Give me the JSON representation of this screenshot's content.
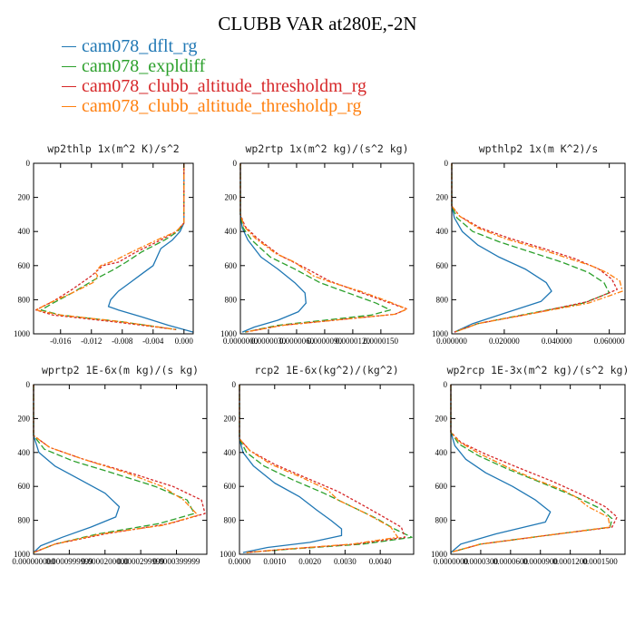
{
  "figure": {
    "title": "CLUBB VAR at280E,-2N",
    "legend": [
      {
        "label": "cam078_dflt_rg",
        "color": "#1f77b4"
      },
      {
        "label": "cam078_expldiff",
        "color": "#2ca02c"
      },
      {
        "label": "cam078_clubb_altitude_thresholdm_rg",
        "color": "#d62728"
      },
      {
        "label": "cam078_clubb_altitude_thresholdp_rg",
        "color": "#ff7f0e"
      }
    ]
  },
  "chart_data": [
    {
      "type": "line",
      "orientation": "vertical-profile",
      "title": "wp2thlp   1x(m^2 K)/s^2",
      "xlim": [
        -0.0195,
        0.0012
      ],
      "ylim": [
        0,
        1000
      ],
      "y_inverted": true,
      "x_ticks": [
        "-0.016",
        "-0.012",
        "-0.008",
        "-0.004",
        "0.000"
      ],
      "x_tick_values": [
        -0.016,
        -0.012,
        -0.008,
        -0.004,
        0.0
      ],
      "y_ticks": [
        "0",
        "200",
        "400",
        "600",
        "800",
        "1000"
      ],
      "series": [
        {
          "name": "cam078_dflt_rg",
          "x": [
            0.0,
            0.0,
            0.0,
            -0.0005,
            -0.0015,
            -0.003,
            -0.004,
            -0.0055,
            -0.007,
            -0.0085,
            -0.0095,
            -0.0098,
            -0.0085,
            -0.0055,
            -0.002,
            0.0012
          ],
          "y": [
            0,
            300,
            350,
            400,
            450,
            500,
            600,
            650,
            700,
            750,
            800,
            840,
            860,
            900,
            950,
            990
          ]
        },
        {
          "name": "cam078_expldiff",
          "x": [
            0.0,
            0.0,
            0.0,
            -0.0008,
            -0.0025,
            -0.0055,
            -0.0075,
            -0.009,
            -0.0115,
            -0.0145,
            -0.017,
            -0.0185,
            -0.016,
            -0.008,
            -0.001
          ],
          "y": [
            0,
            300,
            350,
            400,
            450,
            520,
            580,
            620,
            680,
            760,
            820,
            860,
            890,
            930,
            975
          ]
        },
        {
          "name": "cam078_clubb_altitude_thresholdm_rg",
          "x": [
            0.0,
            0.0,
            0.0,
            -0.001,
            -0.003,
            -0.0062,
            -0.0085,
            -0.0105,
            -0.012,
            -0.0145,
            -0.017,
            -0.0192,
            -0.017,
            -0.009,
            -0.001
          ],
          "y": [
            0,
            300,
            350,
            400,
            450,
            520,
            580,
            600,
            660,
            740,
            810,
            860,
            890,
            930,
            975
          ]
        },
        {
          "name": "cam078_clubb_altitude_thresholdp_rg",
          "x": [
            0.0,
            0.0,
            0.0,
            -0.001,
            -0.0035,
            -0.0068,
            -0.009,
            -0.0108,
            -0.0115,
            -0.0112,
            -0.0118,
            -0.0145,
            -0.0175,
            -0.0192,
            -0.016,
            -0.008,
            -0.001
          ],
          "y": [
            0,
            300,
            350,
            400,
            450,
            520,
            570,
            600,
            640,
            660,
            700,
            760,
            820,
            860,
            890,
            930,
            975
          ]
        }
      ]
    },
    {
      "type": "line",
      "orientation": "vertical-profile",
      "title": "wp2rtp   1x(m^2 kg)/(s^2 kg)",
      "xlim": [
        0,
        1.85e-05
      ],
      "ylim": [
        0,
        1000
      ],
      "y_inverted": true,
      "x_ticks": [
        "0.0000000",
        "0.0000030",
        "0.0000060",
        "0.0000090",
        "0.0000120",
        "0.0000150"
      ],
      "x_tick_values": [
        0.0,
        3e-06,
        6e-06,
        9e-06,
        1.2e-05,
        1.5e-05
      ],
      "y_ticks": [
        "0",
        "200",
        "400",
        "600",
        "800",
        "1000"
      ],
      "series": [
        {
          "name": "cam078_dflt_rg",
          "x": [
            0.0,
            0.0,
            2e-07,
            8e-07,
            2.2e-06,
            4e-06,
            5.8e-06,
            6.9e-06,
            7e-06,
            6.2e-06,
            4e-06,
            1.5e-06,
            2e-07
          ],
          "y": [
            0,
            300,
            380,
            450,
            550,
            620,
            700,
            760,
            820,
            870,
            920,
            960,
            990
          ]
        },
        {
          "name": "cam078_expldiff",
          "x": [
            0.0,
            0.0,
            3e-07,
            1.2e-06,
            3.2e-06,
            5.8e-06,
            8.5e-06,
            1.15e-05,
            1.45e-05,
            1.6e-05,
            1.4e-05,
            9e-06,
            4e-06,
            5e-07
          ],
          "y": [
            0,
            300,
            380,
            450,
            550,
            620,
            700,
            760,
            820,
            860,
            890,
            920,
            950,
            990
          ]
        },
        {
          "name": "cam078_clubb_altitude_thresholdm_rg",
          "x": [
            0.0,
            0.0,
            5e-07,
            1.8e-06,
            4.2e-06,
            6.8e-06,
            9.5e-06,
            1.25e-05,
            1.55e-05,
            1.78e-05,
            1.65e-05,
            1e-05,
            4.5e-06,
            5e-07
          ],
          "y": [
            0,
            300,
            370,
            440,
            540,
            610,
            690,
            750,
            810,
            855,
            885,
            920,
            950,
            990
          ]
        },
        {
          "name": "cam078_clubb_altitude_thresholdp_rg",
          "x": [
            0.0,
            0.0,
            4e-07,
            1.6e-06,
            3.8e-06,
            5.8e-06,
            6.8e-06,
            7.8e-06,
            9.8e-06,
            1.28e-05,
            1.58e-05,
            1.78e-05,
            1.65e-05,
            1e-05,
            4.5e-06,
            5e-07
          ],
          "y": [
            0,
            300,
            370,
            440,
            530,
            580,
            620,
            660,
            700,
            750,
            810,
            855,
            885,
            920,
            950,
            990
          ]
        }
      ]
    },
    {
      "type": "line",
      "orientation": "vertical-profile",
      "title": "wpthlp2   1x(m K^2)/s",
      "xlim": [
        0,
        0.066
      ],
      "ylim": [
        0,
        1000
      ],
      "y_inverted": true,
      "x_ticks": [
        "0.000000",
        "0.020000",
        "0.040000",
        "0.060000"
      ],
      "x_tick_values": [
        0.0,
        0.02,
        0.04,
        0.06
      ],
      "y_ticks": [
        "0",
        "200",
        "400",
        "600",
        "800",
        "1000"
      ],
      "series": [
        {
          "name": "cam078_dflt_rg",
          "x": [
            0.0,
            0.0,
            0.001,
            0.004,
            0.01,
            0.018,
            0.028,
            0.036,
            0.038,
            0.034,
            0.02,
            0.008,
            0.001
          ],
          "y": [
            0,
            250,
            320,
            400,
            480,
            550,
            620,
            700,
            750,
            810,
            880,
            940,
            990
          ]
        },
        {
          "name": "cam078_expldiff",
          "x": [
            0.0,
            0.0,
            0.002,
            0.008,
            0.018,
            0.03,
            0.042,
            0.052,
            0.058,
            0.06,
            0.05,
            0.03,
            0.01,
            0.001
          ],
          "y": [
            0,
            250,
            320,
            400,
            460,
            520,
            580,
            640,
            700,
            760,
            820,
            880,
            940,
            990
          ]
        },
        {
          "name": "cam078_clubb_altitude_thresholdm_rg",
          "x": [
            0.0,
            0.0,
            0.003,
            0.011,
            0.022,
            0.035,
            0.047,
            0.056,
            0.061,
            0.063,
            0.052,
            0.031,
            0.01,
            0.001
          ],
          "y": [
            0,
            250,
            310,
            380,
            440,
            500,
            560,
            620,
            680,
            740,
            810,
            880,
            940,
            990
          ]
        },
        {
          "name": "cam078_clubb_altitude_thresholdp_rg",
          "x": [
            0.0,
            0.0,
            0.003,
            0.01,
            0.02,
            0.033,
            0.045,
            0.053,
            0.059,
            0.064,
            0.065,
            0.052,
            0.031,
            0.01,
            0.001
          ],
          "y": [
            0,
            250,
            310,
            380,
            440,
            500,
            560,
            600,
            640,
            690,
            750,
            820,
            880,
            940,
            990
          ]
        }
      ]
    },
    {
      "type": "line",
      "orientation": "vertical-profile",
      "title": "wprtp2   1E-6x(m kg)/(s kg)",
      "xlim": [
        0,
        4.85e-05
      ],
      "ylim": [
        0,
        1000
      ],
      "y_inverted": true,
      "x_ticks": [
        "0.0000000",
        "0.0000100",
        "0.0000200",
        "0.0000300",
        "0.0000400"
      ],
      "x_tick_labels_printed": [
        "0.000000000",
        "0.0000999999",
        "0.0000200000",
        "0.0000299999",
        "0.0000399999"
      ],
      "x_tick_values": [
        0.0,
        1e-05,
        2e-05,
        3e-05,
        4e-05
      ],
      "y_ticks": [
        "0",
        "200",
        "400",
        "600",
        "800",
        "1000"
      ],
      "series": [
        {
          "name": "cam078_dflt_rg",
          "x": [
            0.0,
            0.0,
            1.5e-06,
            6e-06,
            1.3e-05,
            2e-05,
            2.4e-05,
            2.3e-05,
            1.6e-05,
            8e-06,
            2e-06,
            0.0
          ],
          "y": [
            0,
            300,
            400,
            480,
            560,
            640,
            720,
            780,
            840,
            900,
            950,
            990
          ]
        },
        {
          "name": "cam078_expldiff",
          "x": [
            0.0,
            0.0,
            3e-06,
            1.1e-05,
            2.2e-05,
            3.4e-05,
            4.3e-05,
            4.5e-05,
            3.5e-05,
            1.8e-05,
            6e-06,
            0.0
          ],
          "y": [
            0,
            300,
            380,
            450,
            520,
            600,
            680,
            760,
            820,
            880,
            940,
            990
          ]
        },
        {
          "name": "cam078_clubb_altitude_thresholdm_rg",
          "x": [
            0.0,
            0.0,
            4.5e-06,
            1.4e-05,
            2.7e-05,
            3.9e-05,
            4.7e-05,
            4.8e-05,
            3.8e-05,
            2e-05,
            6e-06,
            0.0
          ],
          "y": [
            0,
            300,
            370,
            440,
            520,
            600,
            680,
            760,
            820,
            880,
            940,
            990
          ]
        },
        {
          "name": "cam078_clubb_altitude_thresholdp_rg",
          "x": [
            0.0,
            0.0,
            4.5e-06,
            1.4e-05,
            2.6e-05,
            3.6e-05,
            4.2e-05,
            4.6e-05,
            3.6e-05,
            1.9e-05,
            6e-06,
            0.0
          ],
          "y": [
            0,
            300,
            370,
            440,
            520,
            600,
            680,
            770,
            830,
            880,
            940,
            990
          ]
        }
      ]
    },
    {
      "type": "line",
      "orientation": "vertical-profile",
      "title": "rcp2   1E-6x(kg^2)/(kg^2)",
      "xlim": [
        0,
        0.00495
      ],
      "ylim": [
        0,
        1000
      ],
      "y_inverted": true,
      "x_ticks": [
        "0.0000",
        "0.0010",
        "0.0020",
        "0.0030",
        "0.0040"
      ],
      "x_tick_values": [
        0.0,
        0.001,
        0.002,
        0.003,
        0.004
      ],
      "y_ticks": [
        "0",
        "200",
        "400",
        "600",
        "800",
        "1000"
      ],
      "series": [
        {
          "name": "cam078_dflt_rg",
          "x": [
            0.0,
            0.0,
            0.0001,
            0.0004,
            0.001,
            0.0017,
            0.0022,
            0.0026,
            0.0029,
            0.0029,
            0.002,
            0.0008,
            0.0001
          ],
          "y": [
            0,
            320,
            400,
            480,
            580,
            660,
            740,
            800,
            850,
            890,
            930,
            960,
            990
          ]
        },
        {
          "name": "cam078_expldiff",
          "x": [
            0.0,
            0.0,
            0.0002,
            0.0007,
            0.0015,
            0.0024,
            0.0032,
            0.0039,
            0.0044,
            0.0049,
            0.0035,
            0.0014,
            0.0002
          ],
          "y": [
            0,
            320,
            400,
            480,
            560,
            640,
            720,
            790,
            850,
            900,
            940,
            970,
            990
          ]
        },
        {
          "name": "cam078_clubb_altitude_thresholdm_rg",
          "x": [
            0.0,
            0.0,
            0.0003,
            0.001,
            0.0019,
            0.0028,
            0.0035,
            0.0041,
            0.0046,
            0.0047,
            0.0033,
            0.0013,
            0.0002
          ],
          "y": [
            0,
            320,
            390,
            470,
            550,
            630,
            710,
            780,
            840,
            900,
            940,
            970,
            990
          ]
        },
        {
          "name": "cam078_clubb_altitude_thresholdp_rg",
          "x": [
            0.0,
            0.0,
            0.0003,
            0.0009,
            0.0018,
            0.0025,
            0.0028,
            0.0036,
            0.0043,
            0.0045,
            0.0032,
            0.0013,
            0.0002
          ],
          "y": [
            0,
            320,
            390,
            470,
            550,
            620,
            680,
            760,
            840,
            900,
            940,
            970,
            990
          ]
        }
      ]
    },
    {
      "type": "line",
      "orientation": "vertical-profile",
      "title": "wp2rcp   1E-3x(m^2 kg)/(s^2 kg)",
      "xlim": [
        0,
        0.000175
      ],
      "ylim": [
        0,
        1000
      ],
      "y_inverted": true,
      "x_ticks": [
        "0.0000000",
        "0.0000300",
        "0.0000600",
        "0.0000900",
        "0.0001200",
        "0.0001500"
      ],
      "x_tick_values": [
        0.0,
        3e-05,
        6e-05,
        9e-05,
        0.00012,
        0.00015
      ],
      "y_ticks": [
        "0",
        "200",
        "400",
        "600",
        "800",
        "1000"
      ],
      "series": [
        {
          "name": "cam078_dflt_rg",
          "x": [
            0.0,
            0.0,
            4e-06,
            1.5e-05,
            3.5e-05,
            6.2e-05,
            8.5e-05,
            0.0001,
            9.5e-05,
            4.5e-05,
            1e-05,
            0.0
          ],
          "y": [
            0,
            280,
            360,
            440,
            520,
            600,
            680,
            750,
            810,
            880,
            940,
            990
          ]
        },
        {
          "name": "cam078_expldiff",
          "x": [
            0.0,
            0.0,
            8e-06,
            2.8e-05,
            5.8e-05,
            9.2e-05,
            0.000125,
            0.00015,
            0.000162,
            0.00016,
            9.5e-05,
            3e-05,
            2e-06
          ],
          "y": [
            0,
            280,
            350,
            420,
            500,
            580,
            660,
            730,
            790,
            840,
            890,
            940,
            985
          ]
        },
        {
          "name": "cam078_clubb_altitude_thresholdm_rg",
          "x": [
            0.0,
            0.0,
            1e-05,
            3.5e-05,
            6.8e-05,
            0.000102,
            0.000132,
            0.000155,
            0.000167,
            0.000162,
            9.5e-05,
            3e-05,
            2e-06
          ],
          "y": [
            0,
            280,
            340,
            410,
            490,
            570,
            650,
            720,
            780,
            840,
            890,
            940,
            985
          ]
        },
        {
          "name": "cam078_clubb_altitude_thresholdp_rg",
          "x": [
            0.0,
            0.0,
            9e-06,
            3e-05,
            5.8e-05,
            8.5e-05,
            0.000112,
            0.000125,
            0.000138,
            0.000158,
            0.00016,
            9.5e-05,
            3e-05,
            2e-06
          ],
          "y": [
            0,
            280,
            340,
            410,
            490,
            560,
            620,
            660,
            720,
            780,
            840,
            890,
            940,
            985
          ]
        }
      ]
    }
  ]
}
